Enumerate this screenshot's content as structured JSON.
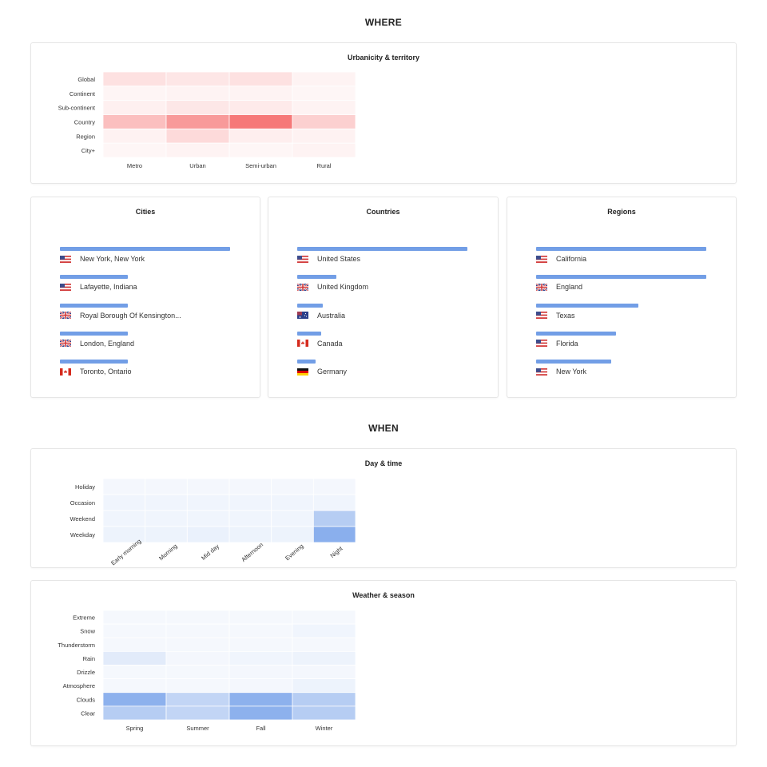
{
  "sections": {
    "where": "WHERE",
    "when": "WHEN"
  },
  "colors": {
    "heat_red": "#f45656",
    "heat_blue": "#6d9be8",
    "bar": "#729ee6",
    "border": "#e6e6e6"
  },
  "urbanicity": {
    "title": "Urbanicity & territory",
    "chart_data": {
      "type": "heatmap",
      "title": "Urbanicity & territory",
      "x_categories": [
        "Metro",
        "Urban",
        "Semi-urban",
        "Rural"
      ],
      "y_categories": [
        "Global",
        "Continent",
        "Sub-continent",
        "Country",
        "Region",
        "City+"
      ],
      "values": [
        [
          0.18,
          0.15,
          0.18,
          0.07
        ],
        [
          0.06,
          0.07,
          0.07,
          0.05
        ],
        [
          0.09,
          0.14,
          0.12,
          0.07
        ],
        [
          0.38,
          0.6,
          0.8,
          0.28
        ],
        [
          0.08,
          0.22,
          0.1,
          0.08
        ],
        [
          0.05,
          0.07,
          0.05,
          0.07
        ]
      ],
      "color": "#f45656"
    }
  },
  "cities": {
    "title": "Cities",
    "chart_data": {
      "type": "bar",
      "orientation": "horizontal",
      "categories": [
        "New York, New York",
        "Lafayette, Indiana",
        "Royal Borough Of Kensington...",
        "London, England",
        "Toronto, Ontario"
      ],
      "values": [
        100,
        40,
        40,
        40,
        40
      ]
    },
    "flags": [
      "flag-us",
      "flag-us",
      "flag-uk",
      "flag-uk",
      "flag-ca"
    ]
  },
  "countries": {
    "title": "Countries",
    "chart_data": {
      "type": "bar",
      "orientation": "horizontal",
      "categories": [
        "United States",
        "United Kingdom",
        "Australia",
        "Canada",
        "Germany"
      ],
      "values": [
        100,
        23,
        15,
        14,
        11
      ]
    },
    "flags": [
      "flag-us",
      "flag-uk",
      "flag-au",
      "flag-ca",
      "flag-de"
    ]
  },
  "regions": {
    "title": "Regions",
    "chart_data": {
      "type": "bar",
      "orientation": "horizontal",
      "categories": [
        "California",
        "England",
        "Texas",
        "Florida",
        "New York"
      ],
      "values": [
        100,
        100,
        60,
        47,
        44
      ]
    },
    "flags": [
      "flag-us",
      "flag-uk",
      "flag-us",
      "flag-us",
      "flag-us"
    ]
  },
  "daytime": {
    "title": "Day & time",
    "chart_data": {
      "type": "heatmap",
      "title": "Day & time",
      "x_categories": [
        "Early morning",
        "Morning",
        "Mid day",
        "Afternoon",
        "Evening",
        "Night"
      ],
      "y_categories": [
        "Holiday",
        "Occasion",
        "Weekend",
        "Weekday"
      ],
      "values": [
        [
          0.08,
          0.08,
          0.08,
          0.08,
          0.08,
          0.08
        ],
        [
          0.1,
          0.1,
          0.1,
          0.1,
          0.1,
          0.1
        ],
        [
          0.1,
          0.1,
          0.1,
          0.1,
          0.1,
          0.5
        ],
        [
          0.12,
          0.12,
          0.14,
          0.12,
          0.12,
          0.8
        ]
      ],
      "color": "#6d9be8"
    }
  },
  "weather": {
    "title": "Weather & season",
    "chart_data": {
      "type": "heatmap",
      "title": "Weather & season",
      "x_categories": [
        "Spring",
        "Summer",
        "Fall",
        "Winter"
      ],
      "y_categories": [
        "Extreme",
        "Snow",
        "Thunderstorm",
        "Rain",
        "Drizzle",
        "Atmosphere",
        "Clouds",
        "Clear"
      ],
      "values": [
        [
          0.07,
          0.07,
          0.07,
          0.07
        ],
        [
          0.07,
          0.07,
          0.07,
          0.1
        ],
        [
          0.07,
          0.07,
          0.07,
          0.07
        ],
        [
          0.2,
          0.08,
          0.1,
          0.12
        ],
        [
          0.07,
          0.07,
          0.08,
          0.08
        ],
        [
          0.07,
          0.07,
          0.08,
          0.12
        ],
        [
          0.78,
          0.42,
          0.78,
          0.5
        ],
        [
          0.5,
          0.42,
          0.78,
          0.5
        ]
      ],
      "color": "#6d9be8"
    }
  }
}
